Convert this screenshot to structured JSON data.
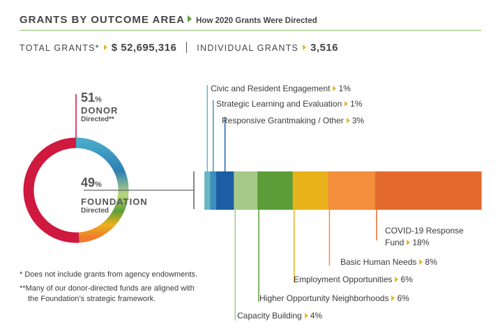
{
  "header": {
    "title": "GRANTS BY OUTCOME AREA",
    "subtitle": "How 2020 Grants Were Directed"
  },
  "totals": {
    "total_label": "TOTAL GRANTS*",
    "total_value": "$ 52,695,316",
    "individual_label": "INDIVIDUAL GRANTS",
    "individual_value": "3,516"
  },
  "donut": {
    "donor": {
      "pct": "51",
      "pct_sign": "%",
      "label": "DONOR",
      "sub": "Directed**"
    },
    "foundation": {
      "pct": "49",
      "pct_sign": "%",
      "label": "FOUNDATION",
      "sub": "Directed"
    }
  },
  "footnotes": {
    "note1": "*  Does not include grants from agency endowments.",
    "note2": "**Many of our donor-directed funds are aligned with",
    "note3": "the Foundation’s strategic framework."
  },
  "chart_data": [
    {
      "type": "pie",
      "categories": [
        "Donor Directed",
        "Foundation Directed"
      ],
      "values": [
        51,
        49
      ],
      "colors": [
        "#d0193f",
        "gradient"
      ]
    },
    {
      "type": "bar",
      "orientation": "horizontal-stacked",
      "unit": "%",
      "categories": [
        "Civic and Resident Engagement",
        "Strategic Learning and Evaluation",
        "Responsive Grantmaking / Other",
        "Capacity Building",
        "Higher Opportunity Neighborhoods",
        "Employment Opportunities",
        "Basic Human Needs",
        "COVID-19 Response Fund"
      ],
      "value_labels": [
        "1%",
        "1%",
        "3%",
        "4%",
        "6%",
        "6%",
        "8%",
        "18%"
      ],
      "values": [
        1,
        1,
        3,
        4,
        6,
        6,
        8,
        18
      ],
      "colors": [
        "#6ab7c4",
        "#3d8fbe",
        "#1c5ea4",
        "#a6c98a",
        "#5c9d38",
        "#e9b21b",
        "#f28e3c",
        "#e36a2c"
      ]
    }
  ]
}
